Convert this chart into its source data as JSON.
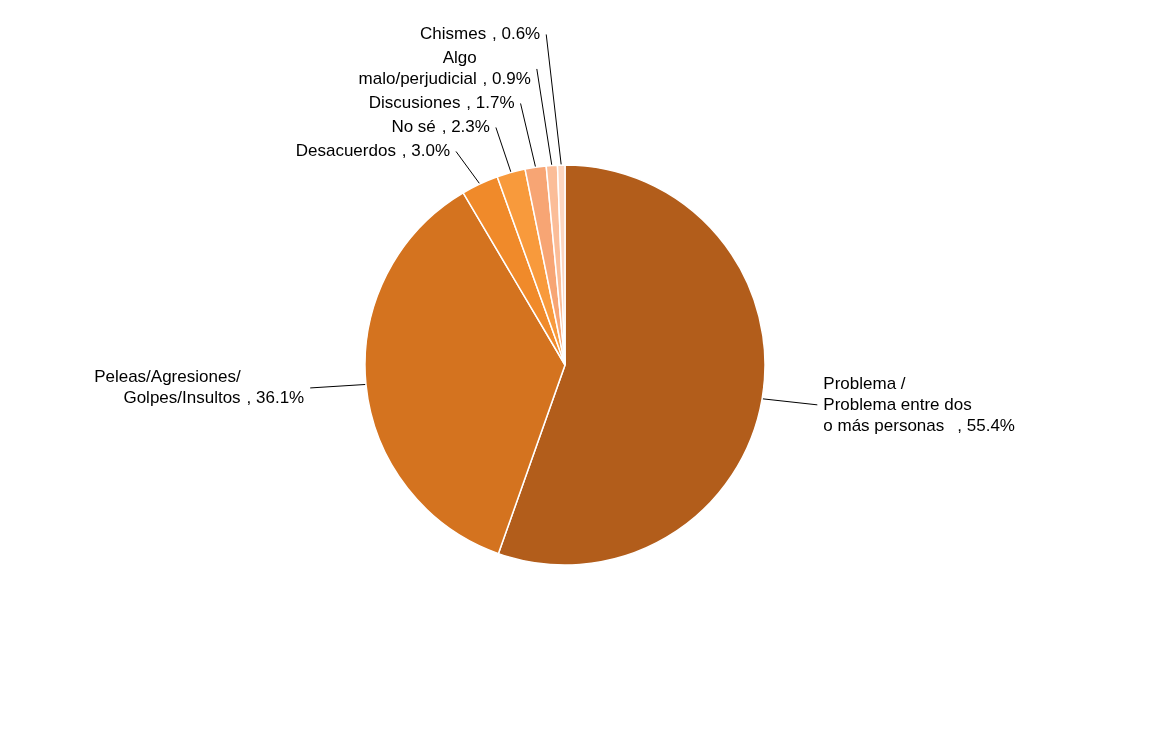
{
  "chart_data": {
    "type": "pie",
    "categories": [
      "Problema / Problema entre dos o más personas",
      "Peleas/Agresiones/ Golpes/Insultos",
      "Desacuerdos",
      "No sé",
      "Discusiones",
      "Algo malo/perjudicial",
      "Chismes"
    ],
    "values": [
      55.4,
      36.1,
      3.0,
      2.3,
      1.7,
      0.9,
      0.6
    ],
    "value_labels": [
      ", 55.4%",
      ", 36.1%",
      ", 3.0%",
      ", 2.3%",
      ", 1.7%",
      ", 0.9%",
      ", 0.6%"
    ],
    "colors": [
      "#b25d1b",
      "#d4731f",
      "#f08a2a",
      "#f89a3c",
      "#f7a574",
      "#fbbd98",
      "#fdd6c0"
    ],
    "legend": false
  }
}
